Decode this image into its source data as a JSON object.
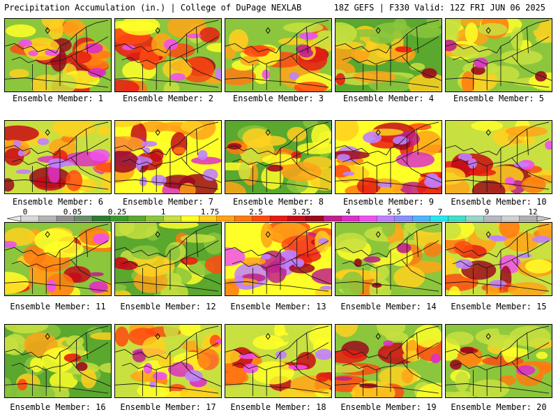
{
  "header": {
    "title": "Precipitation Accumulation (in.) | College of DuPage NEXLAB",
    "run_info": "18Z GEFS | F330 Valid: 12Z FRI JUN 06 2025"
  },
  "colorbar": {
    "labels": [
      "0",
      "0.05",
      "0.25",
      "1",
      "1.75",
      "2.5",
      "3.25",
      "4",
      "5.5",
      "7",
      "9",
      "12"
    ],
    "colors": [
      "#d8d8d8",
      "#b4b4b4",
      "#909090",
      "#6a8e6a",
      "#2e7d32",
      "#3c9a2a",
      "#5aa82e",
      "#8cc63c",
      "#c8e040",
      "#ffff28",
      "#ffd020",
      "#ffa318",
      "#ff7a10",
      "#ff4a10",
      "#e81c12",
      "#c40c18",
      "#9c0a1c",
      "#c0208c",
      "#dc30c8",
      "#f050f0",
      "#c080ff",
      "#8890ff",
      "#50b4ff",
      "#28e6f0",
      "#40e0c8",
      "#9ad6c4",
      "#b8b8c4",
      "#d0d0d0",
      "#b0b0b0"
    ]
  },
  "members": [
    {
      "label": "Ensemble Member: 1",
      "intensity": 0.6
    },
    {
      "label": "Ensemble Member: 2",
      "intensity": 0.62
    },
    {
      "label": "Ensemble Member: 3",
      "intensity": 0.58
    },
    {
      "label": "Ensemble Member: 4",
      "intensity": 0.4
    },
    {
      "label": "Ensemble Member: 5",
      "intensity": 0.5
    },
    {
      "label": "Ensemble Member: 6",
      "intensity": 0.78
    },
    {
      "label": "Ensemble Member: 7",
      "intensity": 0.85
    },
    {
      "label": "Ensemble Member: 8",
      "intensity": 0.42
    },
    {
      "label": "Ensemble Member: 9",
      "intensity": 0.88
    },
    {
      "label": "Ensemble Member: 10",
      "intensity": 0.72
    },
    {
      "label": "Ensemble Member: 11",
      "intensity": 0.6
    },
    {
      "label": "Ensemble Member: 12",
      "intensity": 0.4
    },
    {
      "label": "Ensemble Member: 13",
      "intensity": 0.84
    },
    {
      "label": "Ensemble Member: 14",
      "intensity": 0.45
    },
    {
      "label": "Ensemble Member: 15",
      "intensity": 0.7
    },
    {
      "label": "Ensemble Member: 16",
      "intensity": 0.36
    },
    {
      "label": "Ensemble Member: 17",
      "intensity": 0.7
    },
    {
      "label": "Ensemble Member: 18",
      "intensity": 0.64
    },
    {
      "label": "Ensemble Member: 19",
      "intensity": 0.55
    },
    {
      "label": "Ensemble Member: 20",
      "intensity": 0.45
    }
  ]
}
